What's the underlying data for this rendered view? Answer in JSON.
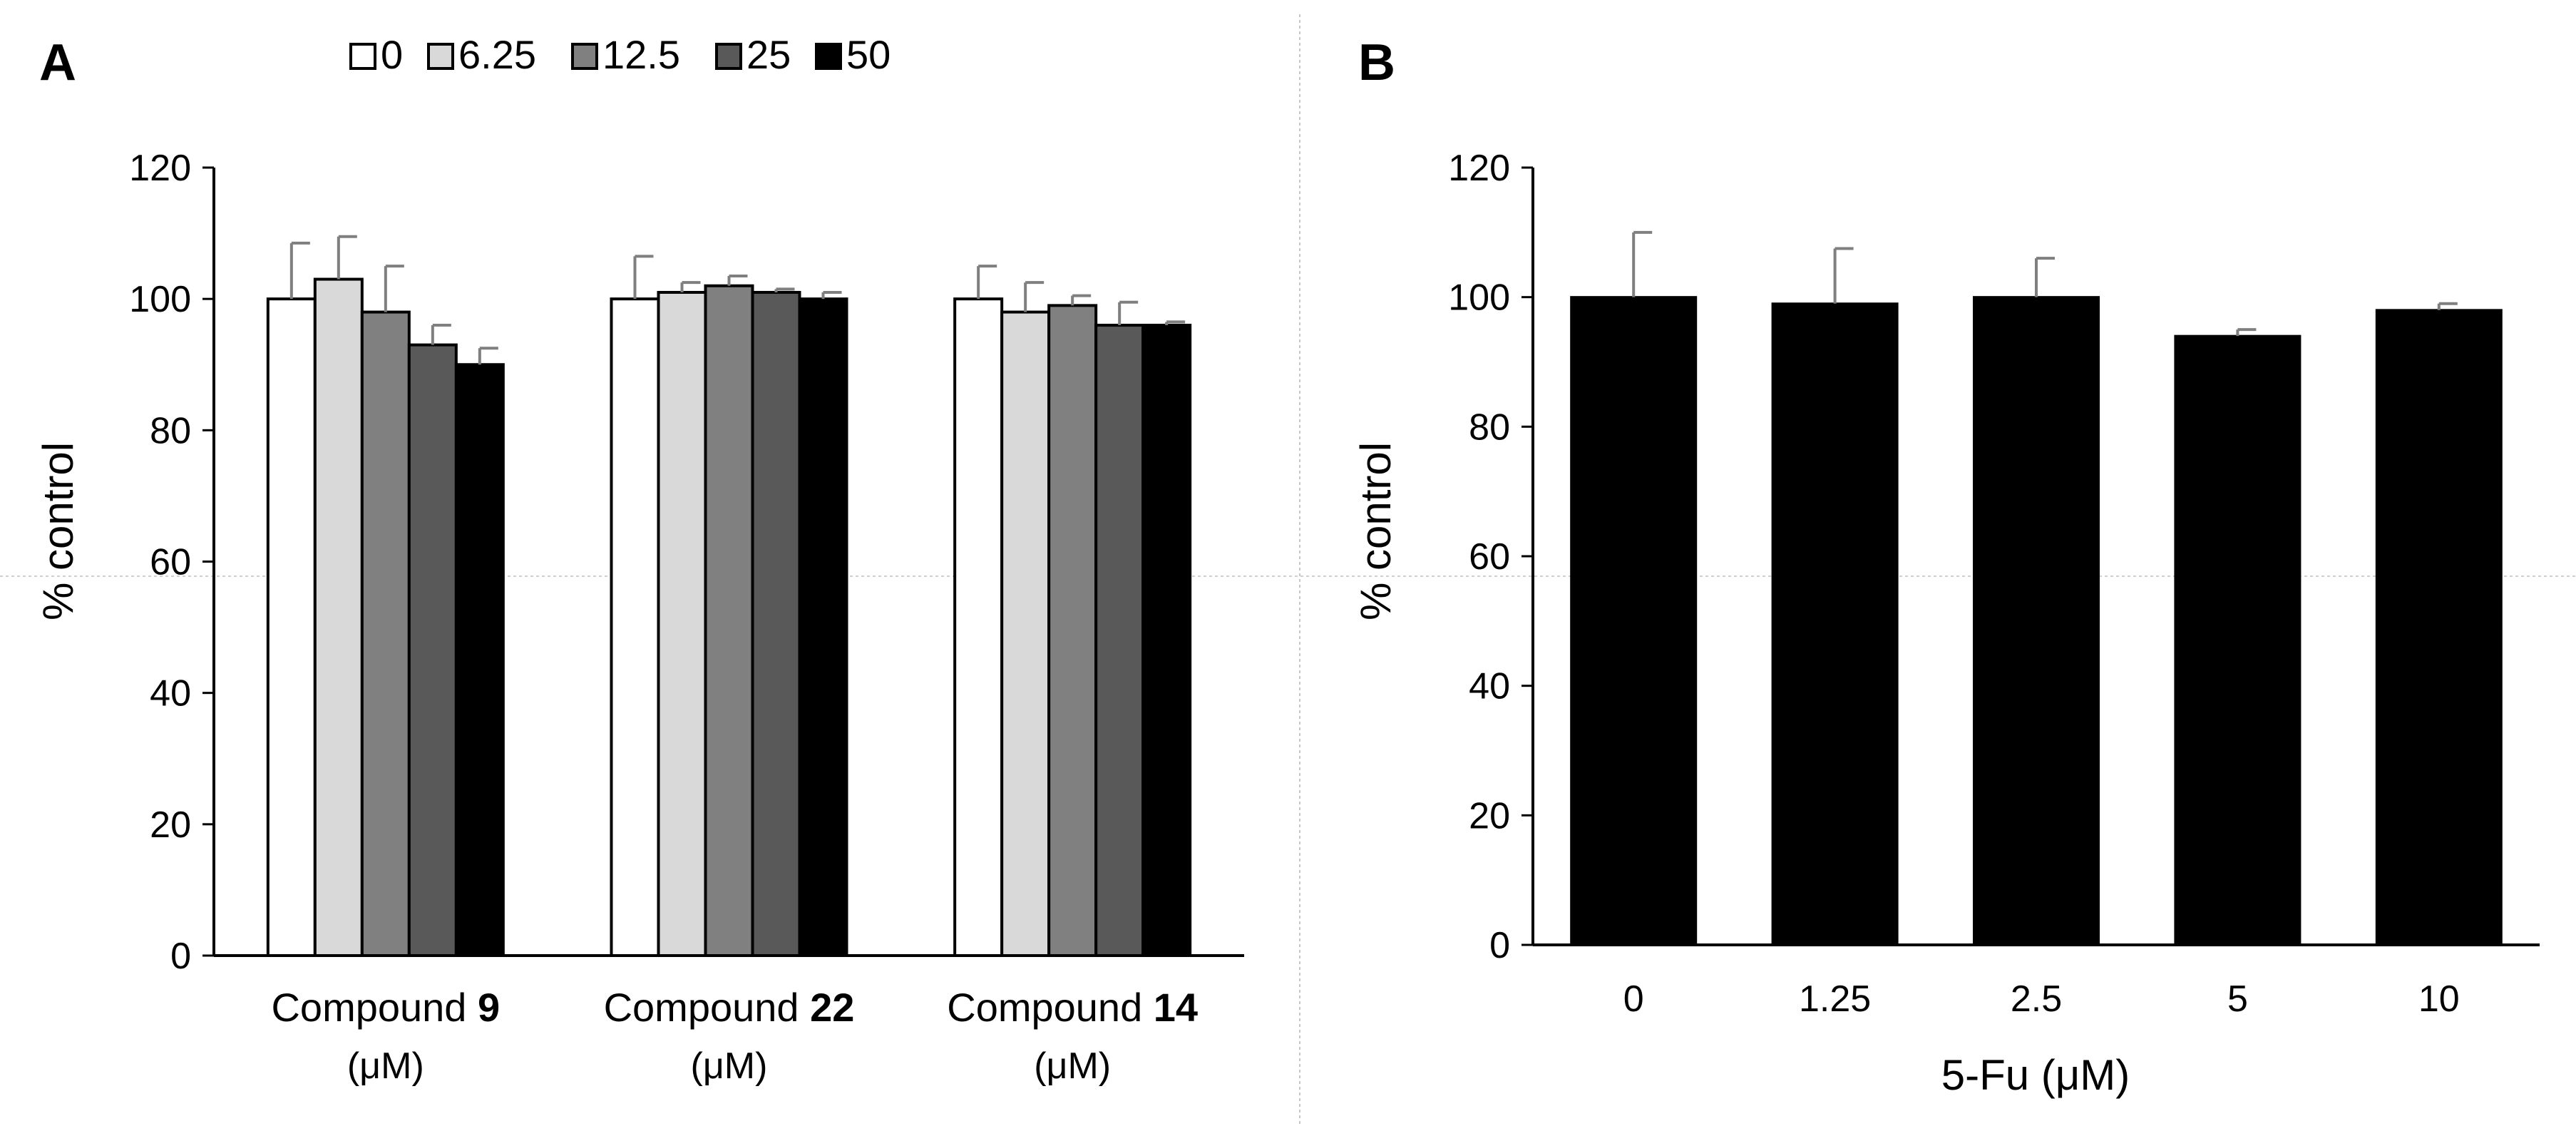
{
  "chart_data": [
    {
      "panel": "A",
      "type": "bar",
      "ylabel": "% control",
      "ylim": [
        0,
        120
      ],
      "yticks": [
        0,
        20,
        40,
        60,
        80,
        100,
        120
      ],
      "legend": {
        "position": "top",
        "entries": [
          "0",
          "6.25",
          "12.5",
          "25",
          "50"
        ]
      },
      "categories": [
        {
          "prefix": "Compound ",
          "bold": "9",
          "unit": "(μM)"
        },
        {
          "prefix": "Compound ",
          "bold": "22",
          "unit": "(μM)"
        },
        {
          "prefix": "Compound ",
          "bold": "14",
          "unit": "(μM)"
        }
      ],
      "series": [
        {
          "name": "0",
          "color": "#ffffff",
          "values": [
            100,
            100,
            100
          ],
          "errors": [
            8.5,
            6.5,
            5
          ]
        },
        {
          "name": "6.25",
          "color": "#d9d9d9",
          "values": [
            103,
            101,
            98
          ],
          "errors": [
            6.5,
            1.5,
            4.5
          ]
        },
        {
          "name": "12.5",
          "color": "#808080",
          "values": [
            98,
            102,
            99
          ],
          "errors": [
            7,
            1.5,
            1.5
          ]
        },
        {
          "name": "25",
          "color": "#595959",
          "values": [
            93,
            101,
            96
          ],
          "errors": [
            3,
            0.5,
            3.5
          ]
        },
        {
          "name": "50",
          "color": "#000000",
          "values": [
            90,
            100,
            96
          ],
          "errors": [
            2.5,
            1,
            0.5
          ]
        }
      ]
    },
    {
      "panel": "B",
      "type": "bar",
      "ylabel": "% control",
      "xlabel": "5-Fu (μM)",
      "ylim": [
        0,
        120
      ],
      "yticks": [
        0,
        20,
        40,
        60,
        80,
        100,
        120
      ],
      "categories": [
        "0",
        "1.25",
        "2.5",
        "5",
        "10"
      ],
      "values": [
        100,
        99,
        100,
        94,
        98
      ],
      "errors": [
        10,
        8.5,
        6,
        1,
        1
      ],
      "color": "#000000"
    }
  ]
}
